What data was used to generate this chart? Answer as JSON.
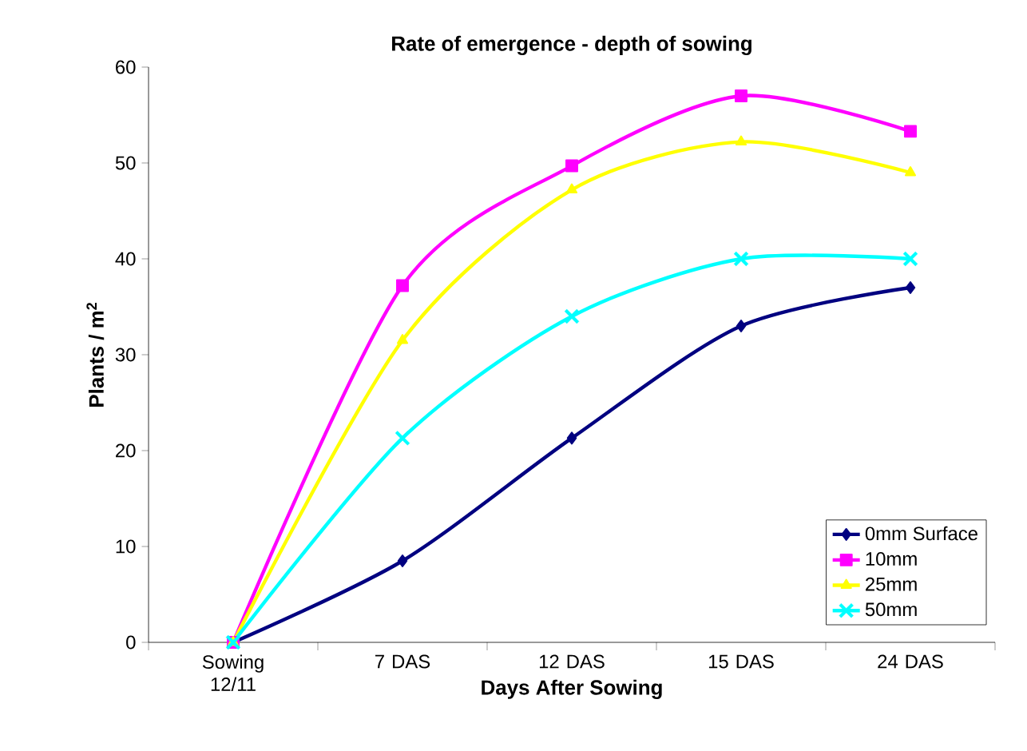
{
  "chart_data": {
    "type": "line",
    "title": "Rate of emergence - depth of sowing",
    "xlabel": "Days After Sowing",
    "ylabel": "Plants / m$^{2}$",
    "categories": [
      "Sowing 12/11",
      "7 DAS",
      "12 DAS",
      "15 DAS",
      "24 DAS"
    ],
    "series": [
      {
        "name": "0mm Surface",
        "color": "#000080",
        "marker": "diamond",
        "values": [
          0,
          8.5,
          21.3,
          33,
          37
        ]
      },
      {
        "name": "10mm",
        "color": "#ff00ff",
        "marker": "square",
        "values": [
          0,
          37.2,
          49.7,
          57,
          53.3
        ]
      },
      {
        "name": "25mm",
        "color": "#ffff00",
        "marker": "triangle",
        "values": [
          0,
          31.5,
          47.2,
          52.2,
          49
        ]
      },
      {
        "name": "50mm",
        "color": "#00ffff",
        "marker": "cross",
        "values": [
          0,
          21.3,
          34,
          40,
          40
        ]
      }
    ],
    "ylim": [
      0,
      60
    ],
    "yticks": [
      0,
      10,
      20,
      30,
      40,
      50,
      60
    ],
    "legend": "bottom right",
    "grid": false,
    "line_style": "solid"
  }
}
